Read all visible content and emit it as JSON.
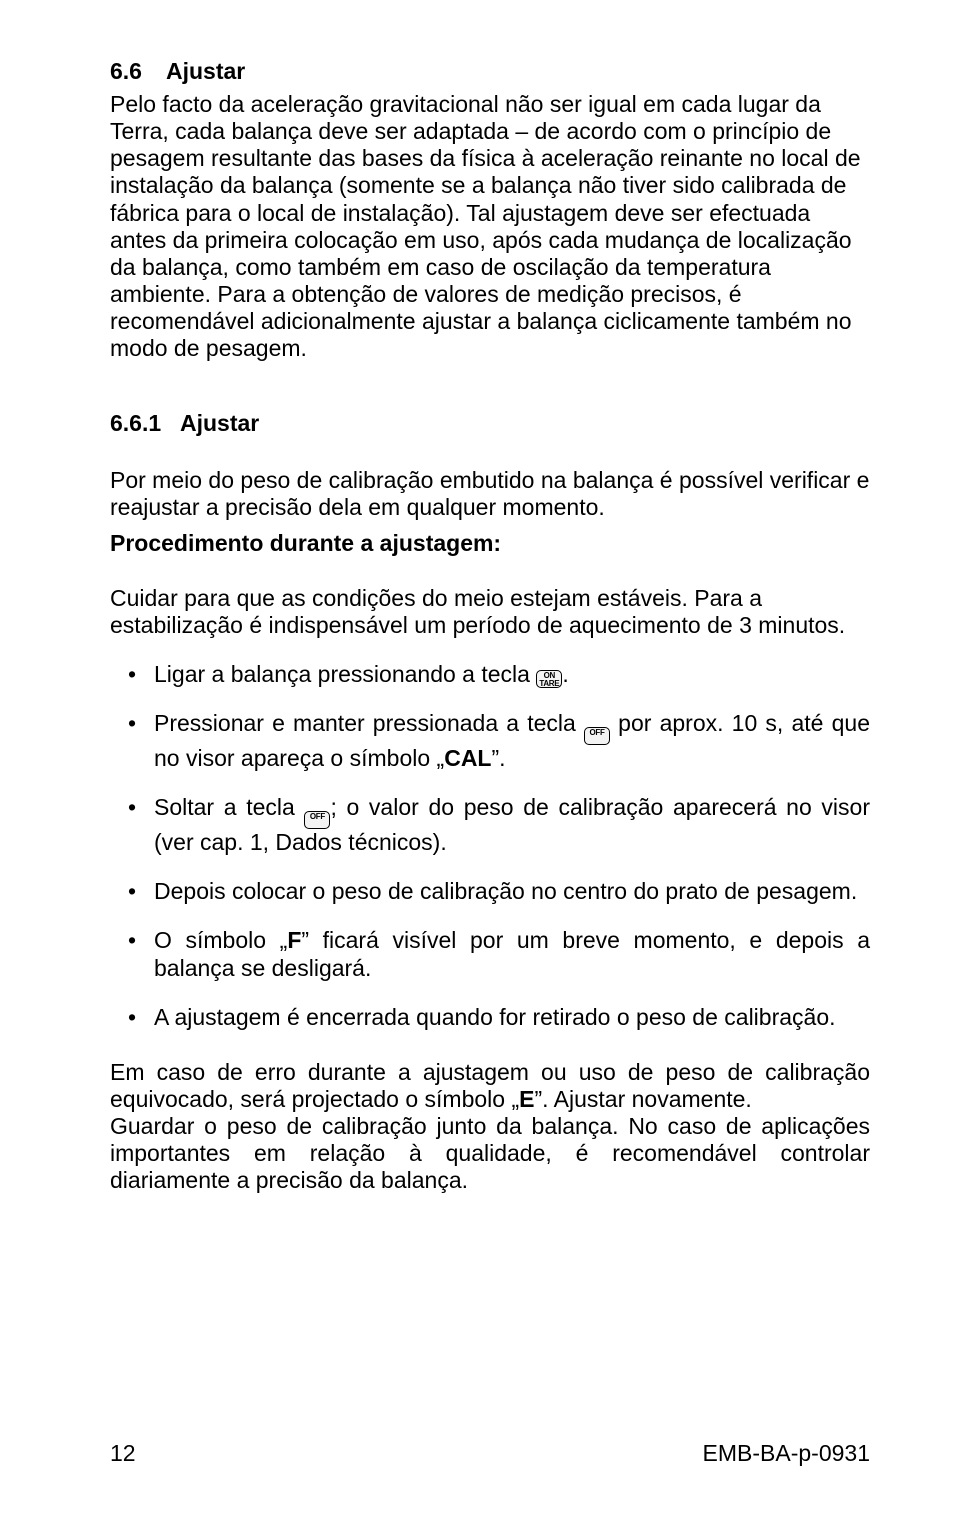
{
  "section_6_6": {
    "number": "6.6",
    "title": "Ajustar",
    "body": "Pelo facto da aceleração gravitacional não ser igual em cada lugar da Terra, cada balança deve ser adaptada – de acordo com o princípio de pesagem resultante das bases da física à aceleração reinante no local de instalação da balança (somente se a balança não tiver sido calibrada de fábrica para o local de instalação). Tal ajustagem deve ser efectuada antes da primeira colocação em uso, após cada mudança de localização da balança, como também em caso de oscilação da temperatura ambiente. Para a obtenção de valores de medição precisos, é recomendável adicionalmente ajustar a balança ciclicamente também no modo de pesagem."
  },
  "section_6_6_1": {
    "number": "6.6.1",
    "title": "Ajustar",
    "intro": "Por meio do peso de calibração embutido na balança é possível verificar e reajustar a precisão dela em qualquer momento.",
    "proc_heading": "Procedimento durante a ajustagem:",
    "pre_bullets": "Cuidar para que as condições do meio estejam estáveis. Para a estabilização é indispensável um período de aquecimento de 3 minutos.",
    "bullets": {
      "b1_a": "Ligar a balança pressionando a tecla ",
      "b1_c": ".",
      "b2_a": "Pressionar e manter pressionada a tecla ",
      "b2_b": " por aprox. 10 s, até que no visor apareça o símbolo „",
      "b2_cal": "CAL",
      "b2_c": "”.",
      "b3_a": "Soltar a tecla ",
      "b3_b": "; o valor do peso de calibração aparecerá no visor (ver cap. 1, Dados técnicos).",
      "b4": "Depois colocar o peso de calibração no centro do prato de pesagem.",
      "b5_a": "O símbolo „",
      "b5_f": "F",
      "b5_b": "” ficará visível por um breve momento, e depois a balança se desligará.",
      "b6": "A ajustagem é encerrada quando for retirado o peso de calibração."
    },
    "tail_a": "Em caso de erro durante a ajustagem ou uso de peso de calibração equivocado, será projectado o símbolo „",
    "tail_e": "E",
    "tail_b": "”. Ajustar novamente.",
    "tail2": "Guardar o peso de calibração junto da balança. No caso de aplicações importantes em relação à qualidade, é recomendável controlar diariamente a precisão da balança."
  },
  "icons": {
    "on_tare": "ON\nTARE",
    "off": "OFF"
  },
  "footer": {
    "page": "12",
    "doc": "EMB-BA-p-0931"
  }
}
